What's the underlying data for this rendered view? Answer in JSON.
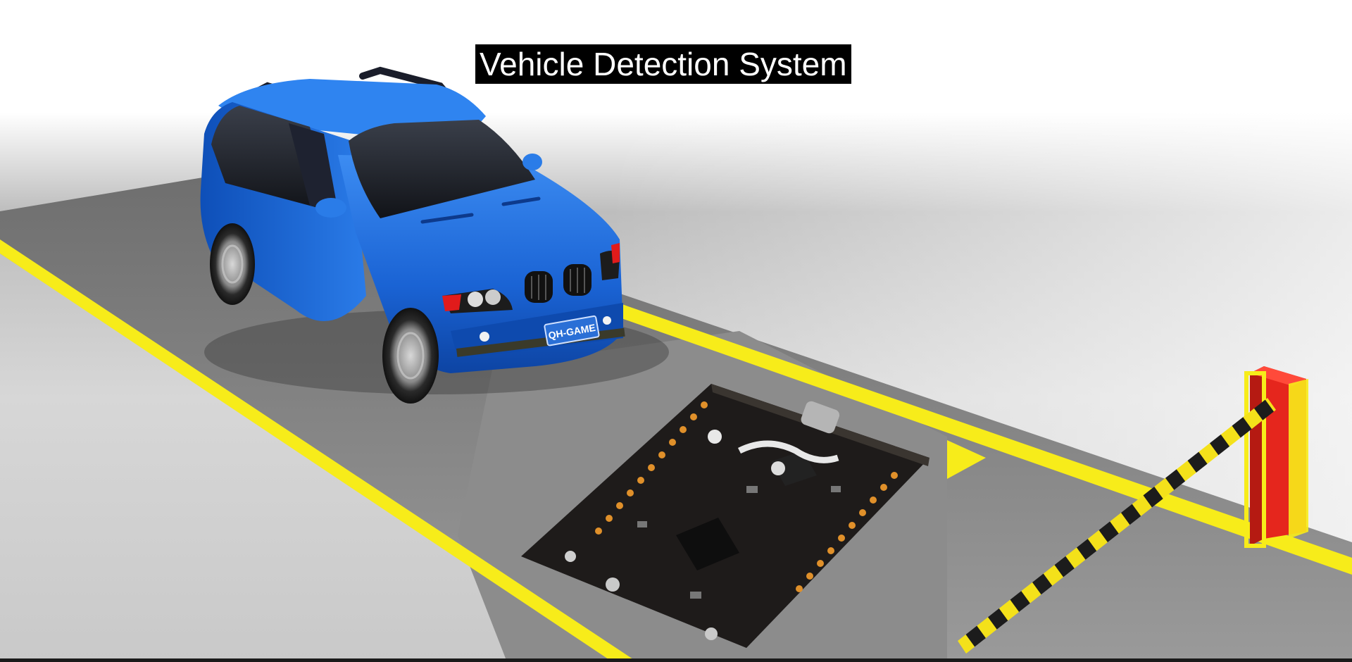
{
  "title": "Vehicle Detection System",
  "car": {
    "license_plate": "QH-GAME"
  },
  "scene": {
    "vehicle": "blue-suv",
    "sensor": "circuit-board-detector",
    "barrier": "parking-barrier-gate"
  },
  "colors": {
    "car_blue": "#1f6fe0",
    "lane_yellow": "#f7ec1a",
    "road_gray": "#8e8e8e",
    "board_black": "#1e1b1a",
    "barrier_red": "#e5261d",
    "title_bg": "#000000",
    "title_fg": "#ffffff"
  }
}
